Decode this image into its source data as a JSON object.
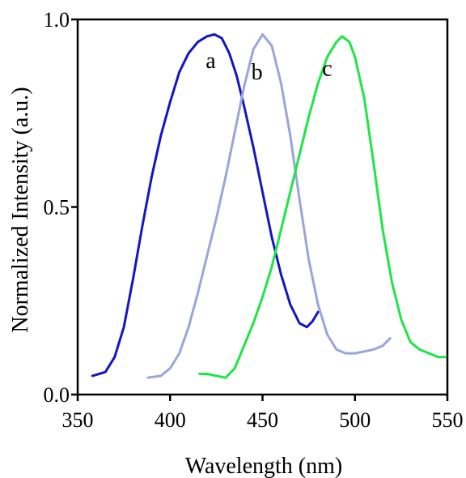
{
  "chart_data": {
    "type": "line",
    "title": "",
    "xlabel": "Wavelength (nm)",
    "ylabel": "Normalized Intensity (a.u.)",
    "xlim": [
      350,
      550
    ],
    "ylim": [
      0.0,
      1.0
    ],
    "xticks": [
      350,
      400,
      450,
      500,
      550
    ],
    "xtick_labels": [
      "350",
      "400",
      "450",
      "500",
      "550"
    ],
    "yticks": [
      0.0,
      0.5,
      1.0
    ],
    "ytick_labels": [
      "0.0",
      "0.5",
      "1.0"
    ],
    "grid": false,
    "legend": "none",
    "series": [
      {
        "name": "a",
        "color": "#1414c8",
        "x": [
          358,
          365,
          370,
          375,
          380,
          385,
          390,
          395,
          400,
          405,
          410,
          415,
          420,
          424,
          428,
          432,
          436,
          440,
          445,
          450,
          455,
          460,
          465,
          470,
          474,
          477,
          480
        ],
        "y": [
          0.05,
          0.06,
          0.1,
          0.18,
          0.31,
          0.45,
          0.58,
          0.69,
          0.78,
          0.86,
          0.91,
          0.94,
          0.955,
          0.96,
          0.95,
          0.91,
          0.85,
          0.77,
          0.66,
          0.54,
          0.42,
          0.32,
          0.24,
          0.19,
          0.18,
          0.195,
          0.22
        ]
      },
      {
        "name": "b",
        "color": "#9aa5dc",
        "x": [
          388,
          395,
          400,
          405,
          410,
          415,
          420,
          425,
          430,
          435,
          440,
          445,
          450,
          455,
          460,
          465,
          470,
          475,
          480,
          485,
          490,
          495,
          500,
          505,
          510,
          515,
          519
        ],
        "y": [
          0.045,
          0.05,
          0.07,
          0.11,
          0.18,
          0.27,
          0.37,
          0.47,
          0.58,
          0.7,
          0.82,
          0.92,
          0.96,
          0.93,
          0.83,
          0.69,
          0.52,
          0.36,
          0.24,
          0.16,
          0.12,
          0.11,
          0.11,
          0.115,
          0.12,
          0.13,
          0.15
        ]
      },
      {
        "name": "c",
        "color": "#1ee646",
        "x": [
          416,
          420,
          425,
          430,
          435,
          440,
          445,
          450,
          455,
          460,
          465,
          470,
          475,
          480,
          485,
          490,
          493,
          497,
          500,
          505,
          510,
          515,
          520,
          525,
          530,
          535,
          540,
          545,
          549
        ],
        "y": [
          0.055,
          0.055,
          0.05,
          0.045,
          0.07,
          0.13,
          0.19,
          0.26,
          0.34,
          0.44,
          0.54,
          0.64,
          0.74,
          0.83,
          0.9,
          0.94,
          0.955,
          0.94,
          0.9,
          0.79,
          0.62,
          0.44,
          0.3,
          0.2,
          0.14,
          0.12,
          0.11,
          0.1,
          0.1
        ]
      }
    ],
    "annotations": [
      {
        "text": "a",
        "x": 422,
        "y": 0.87
      },
      {
        "text": "b",
        "x": 447,
        "y": 0.84
      },
      {
        "text": "c",
        "x": 485,
        "y": 0.85
      }
    ]
  }
}
